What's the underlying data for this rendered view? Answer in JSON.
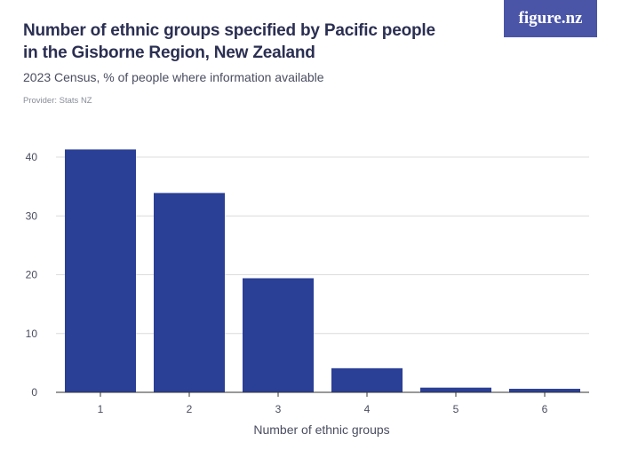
{
  "header": {
    "title": "Number of ethnic groups specified by Pacific people in the Gisborne Region, New Zealand",
    "subtitle": "2023 Census, % of people where information available",
    "provider": "Provider: Stats NZ",
    "logo_text": "figure.nz"
  },
  "colors": {
    "bar": "#2a3f96",
    "grid": "#dcdcdc",
    "axis": "#333333",
    "logo_bg": "#4a55a8"
  },
  "chart_data": {
    "type": "bar",
    "categories": [
      "1",
      "2",
      "3",
      "4",
      "5",
      "6"
    ],
    "values": [
      41.3,
      33.9,
      19.4,
      4.1,
      0.8,
      0.6
    ],
    "xlabel": "Number of ethnic groups",
    "ylabel": "",
    "ylim": [
      0,
      40
    ],
    "yticks": [
      0,
      10,
      20,
      30,
      40
    ],
    "grid": true
  }
}
